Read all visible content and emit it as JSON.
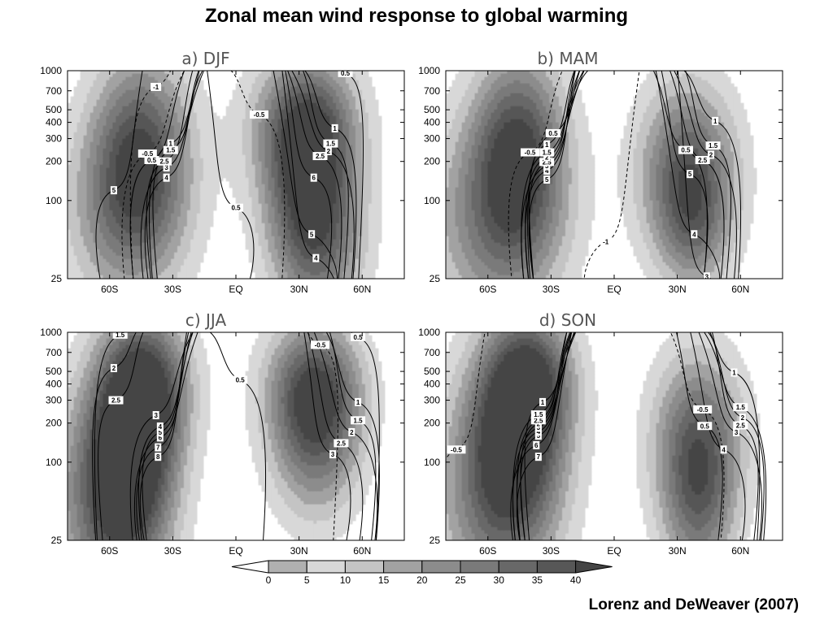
{
  "title": "Zonal mean wind response to global warming",
  "credit": "Lorenz and DeWeaver (2007)",
  "chart_data": {
    "type": "heatmap",
    "panels": [
      {
        "label": "a) DJF",
        "shading_centers": [
          {
            "lat": -45,
            "p": 250,
            "v": 32,
            "w": 16,
            "h": 2.0
          },
          {
            "lat": -52,
            "p": 80,
            "v": 22,
            "w": 20,
            "h": 2.0
          },
          {
            "lat": 35,
            "p": 150,
            "v": 38,
            "w": 15,
            "h": 2.0
          },
          {
            "lat": 32,
            "p": 400,
            "v": 22,
            "w": 18,
            "h": 1.4
          },
          {
            "lat": 40,
            "p": 40,
            "v": 18,
            "w": 15,
            "h": 1.6
          }
        ],
        "contour_labels": [
          {
            "lat": -58,
            "p": 120,
            "t": "5"
          },
          {
            "lat": -33,
            "p": 150,
            "t": "4"
          },
          {
            "lat": -33,
            "p": 180,
            "t": "3"
          },
          {
            "lat": -34,
            "p": 200,
            "t": "2.5"
          },
          {
            "lat": -40,
            "p": 205,
            "t": "0.5"
          },
          {
            "lat": -42,
            "p": 230,
            "t": "-0.5"
          },
          {
            "lat": -31,
            "p": 245,
            "t": "1.5"
          },
          {
            "lat": -31,
            "p": 275,
            "t": "1"
          },
          {
            "lat": -38,
            "p": 750,
            "t": "-1"
          },
          {
            "lat": 0,
            "p": 88,
            "t": "0.5"
          },
          {
            "lat": 38,
            "p": 36,
            "t": "4"
          },
          {
            "lat": 36,
            "p": 55,
            "t": "5"
          },
          {
            "lat": 37,
            "p": 150,
            "t": "6"
          },
          {
            "lat": 40,
            "p": 220,
            "t": "2.5"
          },
          {
            "lat": 44,
            "p": 240,
            "t": "2"
          },
          {
            "lat": 45,
            "p": 275,
            "t": "1.5"
          },
          {
            "lat": 47,
            "p": 360,
            "t": "1"
          },
          {
            "lat": 11,
            "p": 460,
            "t": "-0.5"
          },
          {
            "lat": 52,
            "p": 960,
            "t": "0.5"
          }
        ]
      },
      {
        "label": "b) MAM",
        "shading_centers": [
          {
            "lat": -45,
            "p": 250,
            "v": 34,
            "w": 15,
            "h": 2.0
          },
          {
            "lat": -55,
            "p": 70,
            "v": 26,
            "w": 22,
            "h": 2.2
          },
          {
            "lat": 35,
            "p": 170,
            "v": 34,
            "w": 16,
            "h": 1.8
          },
          {
            "lat": 38,
            "p": 60,
            "v": 16,
            "w": 12,
            "h": 1.4
          }
        ],
        "contour_labels": [
          {
            "lat": 44,
            "p": 26,
            "t": "3"
          },
          {
            "lat": -4,
            "p": 48,
            "t": "-1"
          },
          {
            "lat": 38,
            "p": 55,
            "t": "4"
          },
          {
            "lat": -32,
            "p": 145,
            "t": "5"
          },
          {
            "lat": -32,
            "p": 170,
            "t": "4"
          },
          {
            "lat": -32,
            "p": 185,
            "t": "3"
          },
          {
            "lat": -32,
            "p": 198,
            "t": "2.5"
          },
          {
            "lat": -32,
            "p": 215,
            "t": "2"
          },
          {
            "lat": -32,
            "p": 235,
            "t": "1.5"
          },
          {
            "lat": -32,
            "p": 270,
            "t": "1"
          },
          {
            "lat": -40,
            "p": 235,
            "t": "-0.5"
          },
          {
            "lat": -29,
            "p": 330,
            "t": "0.5"
          },
          {
            "lat": 36,
            "p": 160,
            "t": "5"
          },
          {
            "lat": 42,
            "p": 205,
            "t": "2.5"
          },
          {
            "lat": 46,
            "p": 225,
            "t": "2"
          },
          {
            "lat": 47,
            "p": 265,
            "t": "1.5"
          },
          {
            "lat": 34,
            "p": 245,
            "t": "0.5"
          },
          {
            "lat": 48,
            "p": 410,
            "t": "1"
          }
        ]
      },
      {
        "label": "c) JJA",
        "shading_centers": [
          {
            "lat": -48,
            "p": 150,
            "v": 40,
            "w": 14,
            "h": 2.2
          },
          {
            "lat": -60,
            "p": 50,
            "v": 32,
            "w": 18,
            "h": 2.4
          },
          {
            "lat": -40,
            "p": 400,
            "v": 24,
            "w": 14,
            "h": 1.4
          },
          {
            "lat": 38,
            "p": 180,
            "v": 32,
            "w": 15,
            "h": 1.8
          },
          {
            "lat": 37,
            "p": 400,
            "v": 22,
            "w": 16,
            "h": 1.3
          }
        ],
        "contour_labels": [
          {
            "lat": -37,
            "p": 110,
            "t": "8"
          },
          {
            "lat": -37,
            "p": 130,
            "t": "7"
          },
          {
            "lat": -36,
            "p": 155,
            "t": "6"
          },
          {
            "lat": -36,
            "p": 170,
            "t": "5"
          },
          {
            "lat": -36,
            "p": 188,
            "t": "4"
          },
          {
            "lat": -38,
            "p": 230,
            "t": "3"
          },
          {
            "lat": -57,
            "p": 300,
            "t": "2.5"
          },
          {
            "lat": -58,
            "p": 530,
            "t": "2"
          },
          {
            "lat": -55,
            "p": 960,
            "t": "1.5"
          },
          {
            "lat": 46,
            "p": 115,
            "t": "3"
          },
          {
            "lat": 50,
            "p": 140,
            "t": "2.5"
          },
          {
            "lat": 55,
            "p": 170,
            "t": "2"
          },
          {
            "lat": 58,
            "p": 210,
            "t": "1.5"
          },
          {
            "lat": 58,
            "p": 290,
            "t": "1"
          },
          {
            "lat": 2,
            "p": 430,
            "t": "0.5"
          },
          {
            "lat": 40,
            "p": 800,
            "t": "-0.5"
          },
          {
            "lat": 58,
            "p": 920,
            "t": "0.5"
          }
        ]
      },
      {
        "label": "d) SON",
        "shading_centers": [
          {
            "lat": -45,
            "p": 200,
            "v": 36,
            "w": 15,
            "h": 2.0
          },
          {
            "lat": -55,
            "p": 60,
            "v": 30,
            "w": 20,
            "h": 2.4
          },
          {
            "lat": -38,
            "p": 450,
            "v": 22,
            "w": 14,
            "h": 1.3
          },
          {
            "lat": 40,
            "p": 150,
            "v": 32,
            "w": 15,
            "h": 1.8
          },
          {
            "lat": 40,
            "p": 40,
            "v": 20,
            "w": 12,
            "h": 1.6
          }
        ],
        "contour_labels": [
          {
            "lat": -75,
            "p": 125,
            "t": "-0.5"
          },
          {
            "lat": -36,
            "p": 110,
            "t": "7"
          },
          {
            "lat": -37,
            "p": 135,
            "t": "6"
          },
          {
            "lat": -36,
            "p": 160,
            "t": "5"
          },
          {
            "lat": -36,
            "p": 172,
            "t": "4"
          },
          {
            "lat": -36,
            "p": 185,
            "t": "3"
          },
          {
            "lat": -36,
            "p": 198,
            "t": "2"
          },
          {
            "lat": -36,
            "p": 210,
            "t": "2.5"
          },
          {
            "lat": -36,
            "p": 233,
            "t": "1.5"
          },
          {
            "lat": -34,
            "p": 290,
            "t": "1"
          },
          {
            "lat": 52,
            "p": 125,
            "t": "4"
          },
          {
            "lat": 58,
            "p": 170,
            "t": "3"
          },
          {
            "lat": 60,
            "p": 192,
            "t": "2.5"
          },
          {
            "lat": 61,
            "p": 220,
            "t": "2"
          },
          {
            "lat": 60,
            "p": 265,
            "t": "1.5"
          },
          {
            "lat": 43,
            "p": 190,
            "t": "0.5"
          },
          {
            "lat": 42,
            "p": 255,
            "t": "-0.5"
          },
          {
            "lat": 57,
            "p": 490,
            "t": "1"
          }
        ]
      }
    ],
    "xlim": [
      -80,
      80
    ],
    "xticks": [
      {
        "v": -60,
        "t": "60S"
      },
      {
        "v": -30,
        "t": "30S"
      },
      {
        "v": 0,
        "t": "EQ"
      },
      {
        "v": 30,
        "t": "30N"
      },
      {
        "v": 60,
        "t": "60N"
      }
    ],
    "ylim": [
      1000,
      25
    ],
    "yscale": "log",
    "yticks": [
      {
        "v": 25,
        "t": "25"
      },
      {
        "v": 100,
        "t": "100"
      },
      {
        "v": 200,
        "t": "200"
      },
      {
        "v": 300,
        "t": "300"
      },
      {
        "v": 400,
        "t": "400"
      },
      {
        "v": 500,
        "t": "500"
      },
      {
        "v": 700,
        "t": "700"
      },
      {
        "v": 1000,
        "t": "1000"
      }
    ],
    "colorbar": {
      "levels": [
        "0",
        "5",
        "10",
        "15",
        "20",
        "25",
        "30",
        "35",
        "40"
      ],
      "colors": [
        "#ffffff",
        "#b0b0b0",
        "#d8d8d8",
        "#c4c4c4",
        "#a2a2a2",
        "#8c8c8c",
        "#7a7a7a",
        "#686868",
        "#575757",
        "#444444"
      ]
    }
  }
}
